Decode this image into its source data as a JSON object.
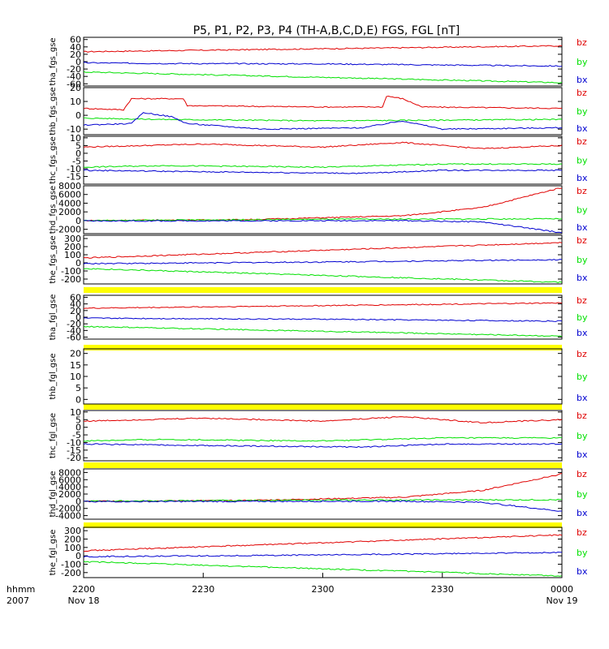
{
  "chart_data": {
    "type": "line",
    "title": "P5, P1, P2, P3, P4 (TH-A,B,C,D,E) FGS, FGL [nT]",
    "x_ticks": [
      {
        "label": "2200",
        "sub": "Nov 18"
      },
      {
        "label": "2230",
        "sub": ""
      },
      {
        "label": "2300",
        "sub": ""
      },
      {
        "label": "2330",
        "sub": ""
      },
      {
        "label": "0000",
        "sub": "Nov 19"
      }
    ],
    "x_label": "hhmm",
    "x_sublabel": "2007",
    "xlim_minutes": [
      0,
      120
    ],
    "legend": [
      "bz",
      "by",
      "bx"
    ],
    "colors": {
      "bz": "#e00000",
      "by": "#00e000",
      "bx": "#0000d0",
      "bar": "#ffff00",
      "frame": "#000000"
    },
    "panels": [
      {
        "ylabel": "tha_fgs_gse",
        "ylim": [
          -66,
          66
        ],
        "ticks": [
          60,
          40,
          20,
          0,
          -20,
          -40,
          -60
        ],
        "bz": [
          [
            0,
            27
          ],
          [
            120,
            43
          ]
        ],
        "by": [
          [
            0,
            -28
          ],
          [
            120,
            -57
          ]
        ],
        "bx": [
          [
            0,
            -3
          ],
          [
            20,
            -5
          ],
          [
            60,
            -6
          ],
          [
            120,
            -12
          ]
        ]
      },
      {
        "ylabel": "thb_fgs_gse",
        "ylim": [
          -14,
          20
        ],
        "ticks": [
          20,
          10,
          0,
          -10
        ],
        "bz": [
          [
            0,
            5
          ],
          [
            10,
            4
          ],
          [
            12,
            12
          ],
          [
            25,
            12
          ],
          [
            26,
            7
          ],
          [
            60,
            6
          ],
          [
            75,
            6
          ],
          [
            76,
            14
          ],
          [
            80,
            12
          ],
          [
            85,
            6
          ],
          [
            120,
            5
          ]
        ],
        "by": [
          [
            0,
            -2
          ],
          [
            20,
            -3
          ],
          [
            60,
            -4
          ],
          [
            120,
            -3
          ]
        ],
        "bx": [
          [
            0,
            -7
          ],
          [
            12,
            -6
          ],
          [
            15,
            2
          ],
          [
            22,
            -1
          ],
          [
            26,
            -6
          ],
          [
            45,
            -10
          ],
          [
            70,
            -9
          ],
          [
            80,
            -4
          ],
          [
            90,
            -10
          ],
          [
            120,
            -9
          ]
        ]
      },
      {
        "ylabel": "thc_fgs_gse",
        "ylim": [
          -20,
          11
        ],
        "ticks": [
          10,
          5,
          0,
          -5,
          -10,
          -15
        ],
        "bz": [
          [
            0,
            4
          ],
          [
            30,
            6
          ],
          [
            60,
            4
          ],
          [
            80,
            7
          ],
          [
            100,
            3
          ],
          [
            120,
            5
          ]
        ],
        "by": [
          [
            0,
            -9
          ],
          [
            20,
            -8
          ],
          [
            60,
            -9
          ],
          [
            90,
            -7
          ],
          [
            120,
            -7
          ]
        ],
        "bx": [
          [
            0,
            -11
          ],
          [
            30,
            -12
          ],
          [
            70,
            -13
          ],
          [
            90,
            -11
          ],
          [
            120,
            -11
          ]
        ]
      },
      {
        "ylabel": "thd_fgs_gse",
        "ylim": [
          -3000,
          8000
        ],
        "ticks": [
          8000,
          6000,
          4000,
          2000,
          0,
          -2000
        ],
        "bz": [
          [
            0,
            0
          ],
          [
            40,
            200
          ],
          [
            80,
            1100
          ],
          [
            100,
            3000
          ],
          [
            120,
            7600
          ]
        ],
        "by": [
          [
            0,
            0
          ],
          [
            60,
            300
          ],
          [
            120,
            400
          ]
        ],
        "bx": [
          [
            0,
            -100
          ],
          [
            80,
            0
          ],
          [
            100,
            -300
          ],
          [
            120,
            -2800
          ]
        ]
      },
      {
        "ylabel": "the_fgs_gse",
        "ylim": [
          -260,
          340
        ],
        "ticks": [
          300,
          200,
          100,
          0,
          -100,
          -200
        ],
        "bz": [
          [
            0,
            60
          ],
          [
            120,
            250
          ]
        ],
        "by": [
          [
            0,
            -70
          ],
          [
            120,
            -240
          ]
        ],
        "bx": [
          [
            0,
            -10
          ],
          [
            60,
            10
          ],
          [
            120,
            40
          ]
        ]
      },
      {
        "ylabel": "tha_fgl_gse",
        "ylim": [
          -66,
          66
        ],
        "ticks": [
          60,
          40,
          20,
          0,
          -20,
          -40,
          -60
        ],
        "bz": [
          [
            0,
            27
          ],
          [
            120,
            43
          ]
        ],
        "by": [
          [
            0,
            -28
          ],
          [
            120,
            -57
          ]
        ],
        "bx": [
          [
            0,
            -3
          ],
          [
            60,
            -6
          ],
          [
            120,
            -12
          ]
        ]
      },
      {
        "ylabel": "thb_fgl_gse",
        "ylim": [
          -2,
          22
        ],
        "ticks": [
          20,
          15,
          10,
          5,
          0
        ],
        "bz": [],
        "by": [],
        "bx": []
      },
      {
        "ylabel": "thc_fgl_gse",
        "ylim": [
          -22,
          11
        ],
        "ticks": [
          10,
          5,
          0,
          -5,
          -10,
          -15,
          -20
        ],
        "bz": [
          [
            0,
            4
          ],
          [
            30,
            6
          ],
          [
            60,
            4
          ],
          [
            80,
            7
          ],
          [
            100,
            3
          ],
          [
            120,
            5
          ]
        ],
        "by": [
          [
            0,
            -9
          ],
          [
            20,
            -8
          ],
          [
            60,
            -9
          ],
          [
            90,
            -7
          ],
          [
            120,
            -7
          ]
        ],
        "bx": [
          [
            0,
            -11
          ],
          [
            30,
            -12
          ],
          [
            70,
            -13
          ],
          [
            90,
            -11
          ],
          [
            120,
            -11
          ]
        ]
      },
      {
        "ylabel": "thd_fgl_gse",
        "ylim": [
          -5000,
          9000
        ],
        "ticks": [
          8000,
          6000,
          4000,
          2000,
          0,
          -2000,
          -4000
        ],
        "bz": [
          [
            0,
            0
          ],
          [
            40,
            200
          ],
          [
            80,
            1100
          ],
          [
            100,
            3000
          ],
          [
            120,
            7600
          ]
        ],
        "by": [
          [
            0,
            0
          ],
          [
            60,
            300
          ],
          [
            120,
            400
          ]
        ],
        "bx": [
          [
            0,
            -100
          ],
          [
            80,
            0
          ],
          [
            100,
            -300
          ],
          [
            120,
            -2800
          ]
        ]
      },
      {
        "ylabel": "the_fgl_gse",
        "ylim": [
          -260,
          340
        ],
        "ticks": [
          300,
          200,
          100,
          0,
          -100,
          -200
        ],
        "bz": [
          [
            0,
            60
          ],
          [
            120,
            250
          ]
        ],
        "by": [
          [
            0,
            -70
          ],
          [
            120,
            -240
          ]
        ],
        "bx": [
          [
            0,
            -10
          ],
          [
            60,
            10
          ],
          [
            120,
            40
          ]
        ]
      }
    ]
  }
}
